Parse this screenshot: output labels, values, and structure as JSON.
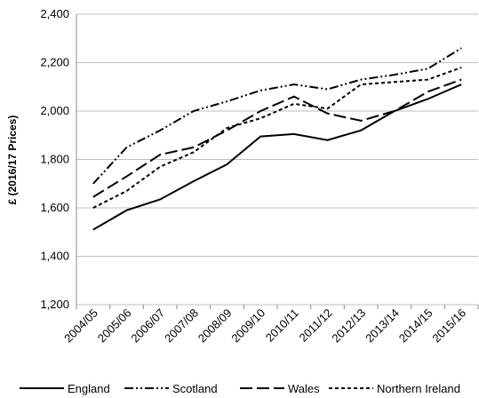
{
  "chart_data": {
    "type": "line",
    "y_label": "£ (2016/17 Prices)",
    "categories": [
      "2004/05",
      "2005/06",
      "2006/07",
      "2007/08",
      "2008/09",
      "2009/10",
      "2010/11",
      "2011/12",
      "2012/13",
      "2013/14",
      "2014/15",
      "2015/16"
    ],
    "series": [
      {
        "name": "England",
        "color": "#000000",
        "dash": "solid",
        "values": [
          1510,
          1590,
          1635,
          1710,
          1780,
          1895,
          1905,
          1880,
          1920,
          2000,
          2050,
          2110
        ]
      },
      {
        "name": "Scotland",
        "color": "#000000",
        "dash": "dash-dot-dot",
        "values": [
          1700,
          1850,
          1920,
          2000,
          2040,
          2085,
          2110,
          2090,
          2130,
          2150,
          2175,
          2260
        ]
      },
      {
        "name": "Wales",
        "color": "#000000",
        "dash": "long-dash",
        "values": [
          1645,
          1730,
          1820,
          1850,
          1920,
          2000,
          2060,
          1990,
          1960,
          2000,
          2080,
          2130
        ]
      },
      {
        "name": "Northern Ireland",
        "color": "#000000",
        "dash": "short-dash",
        "values": [
          1600,
          1670,
          1770,
          1830,
          1930,
          1970,
          2030,
          2010,
          2110,
          2120,
          2130,
          2180
        ]
      }
    ],
    "ylim": [
      1200,
      2400
    ],
    "yticks": [
      {
        "value": 1200,
        "label": "1,200"
      },
      {
        "value": 1400,
        "label": "1,400"
      },
      {
        "value": 1600,
        "label": "1,600"
      },
      {
        "value": 1800,
        "label": "1,800"
      },
      {
        "value": 2000,
        "label": "2,000"
      },
      {
        "value": 2200,
        "label": "2,200"
      },
      {
        "value": 2400,
        "label": "2,400"
      }
    ],
    "grid": true,
    "legend": "bottom"
  }
}
